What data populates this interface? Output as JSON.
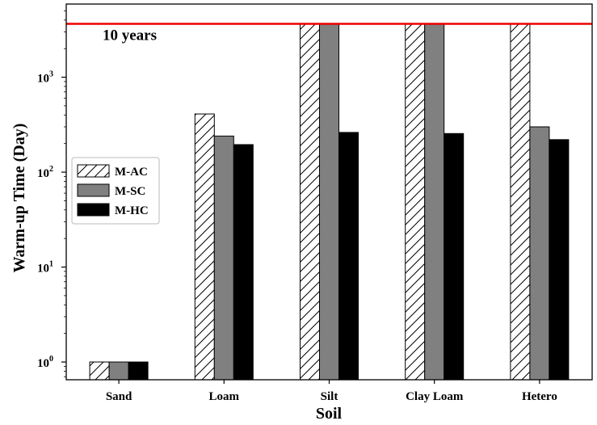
{
  "chart_data": {
    "type": "bar",
    "xlabel": "Soil",
    "ylabel": "Warm-up Time (Day)",
    "yscale": "log",
    "ylim": [
      0.65,
      5900
    ],
    "grid": false,
    "legend_position": "left-middle",
    "categories": [
      "Sand",
      "Loam",
      "Silt",
      "Clay Loam",
      "Hetero"
    ],
    "series": [
      {
        "name": "M-AC",
        "style": "hatched",
        "color": "#ffffff",
        "values": [
          1,
          410,
          3650,
          3650,
          3650
        ]
      },
      {
        "name": "M-SC",
        "style": "solid",
        "color": "#808080",
        "values": [
          1,
          240,
          3650,
          3650,
          300
        ]
      },
      {
        "name": "M-HC",
        "style": "solid",
        "color": "#000000",
        "values": [
          1,
          195,
          262,
          255,
          220
        ]
      }
    ],
    "reference_line": {
      "value": 3650,
      "label": "10 years",
      "color": "#ee0000"
    },
    "yticks": [
      {
        "value": 1,
        "base": "10",
        "exp": "0"
      },
      {
        "value": 10,
        "base": "10",
        "exp": "1"
      },
      {
        "value": 100,
        "base": "10",
        "exp": "2"
      },
      {
        "value": 1000,
        "base": "10",
        "exp": "3"
      }
    ]
  }
}
